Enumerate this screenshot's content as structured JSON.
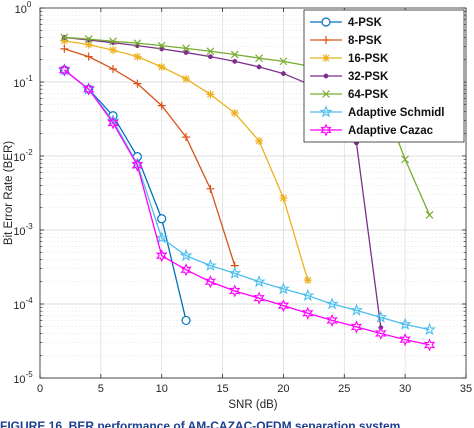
{
  "chart_data": {
    "type": "line",
    "xlabel": "SNR (dB)",
    "ylabel": "Bit Error Rate (BER)",
    "xlim": [
      0,
      35
    ],
    "ylim": [
      1e-05,
      1
    ],
    "yscale": "log",
    "grid": true,
    "legend_position": "top-right",
    "x_ticks": [
      "0",
      "5",
      "10",
      "15",
      "20",
      "25",
      "30",
      "35"
    ],
    "y_ticks": [
      {
        "base": "10",
        "exp": "-5"
      },
      {
        "base": "10",
        "exp": "-4"
      },
      {
        "base": "10",
        "exp": "-3"
      },
      {
        "base": "10",
        "exp": "-2"
      },
      {
        "base": "10",
        "exp": "-1"
      },
      {
        "base": "10",
        "exp": "0"
      }
    ],
    "series": [
      {
        "name": "4-PSK",
        "color": "#0072bd",
        "marker": "circle",
        "x": [
          2,
          4,
          6,
          8,
          10,
          12
        ],
        "y": [
          0.145,
          0.08,
          0.035,
          0.0098,
          0.00142,
          6e-05
        ]
      },
      {
        "name": "8-PSK",
        "color": "#d95319",
        "marker": "plus",
        "x": [
          2,
          4,
          6,
          8,
          10,
          12,
          14,
          16
        ],
        "y": [
          0.28,
          0.22,
          0.15,
          0.095,
          0.048,
          0.018,
          0.0036,
          0.00033
        ]
      },
      {
        "name": "16-PSK",
        "color": "#edb120",
        "marker": "asterisk",
        "x": [
          2,
          4,
          6,
          8,
          10,
          12,
          14,
          16,
          18,
          20,
          22
        ],
        "y": [
          0.36,
          0.32,
          0.27,
          0.22,
          0.16,
          0.11,
          0.068,
          0.038,
          0.016,
          0.0027,
          0.00021
        ]
      },
      {
        "name": "32-PSK",
        "color": "#7e2f8e",
        "marker": "dot",
        "x": [
          2,
          4,
          6,
          8,
          10,
          12,
          14,
          16,
          18,
          20,
          22,
          24,
          26,
          28
        ],
        "y": [
          0.4,
          0.37,
          0.34,
          0.31,
          0.28,
          0.25,
          0.22,
          0.19,
          0.16,
          0.13,
          0.095,
          0.06,
          0.015,
          4.8e-05
        ]
      },
      {
        "name": "64-PSK",
        "color": "#77ac30",
        "marker": "x",
        "x": [
          2,
          4,
          6,
          8,
          10,
          12,
          14,
          16,
          18,
          20,
          22,
          24,
          26,
          28,
          30,
          32
        ],
        "y": [
          0.4,
          0.38,
          0.355,
          0.335,
          0.31,
          0.285,
          0.26,
          0.235,
          0.21,
          0.19,
          0.165,
          0.14,
          0.11,
          0.065,
          0.009,
          0.0016
        ]
      },
      {
        "name": "Adaptive Schmidl",
        "color": "#4dbeee",
        "marker": "star",
        "x": [
          2,
          4,
          6,
          8,
          10,
          12,
          14,
          16,
          18,
          20,
          22,
          24,
          26,
          28,
          30,
          32
        ],
        "y": [
          0.145,
          0.08,
          0.03,
          0.0078,
          0.00078,
          0.00045,
          0.00033,
          0.00026,
          0.0002,
          0.00016,
          0.00013,
          0.0001,
          8.2e-05,
          6.6e-05,
          5.3e-05,
          4.5e-05
        ]
      },
      {
        "name": "Adaptive Cazac",
        "color": "#ff00ff",
        "marker": "hexagram",
        "x": [
          2,
          4,
          6,
          8,
          10,
          12,
          14,
          16,
          18,
          20,
          22,
          24,
          26,
          28,
          30,
          32
        ],
        "y": [
          0.145,
          0.08,
          0.028,
          0.0075,
          0.00045,
          0.00029,
          0.0002,
          0.00015,
          0.00012,
          9.5e-05,
          7.5e-05,
          6e-05,
          4.9e-05,
          4e-05,
          3.3e-05,
          2.8e-05
        ]
      }
    ]
  },
  "caption": "FIGURE 16. BER performance of AM-CAZAC-OFDM separation system."
}
